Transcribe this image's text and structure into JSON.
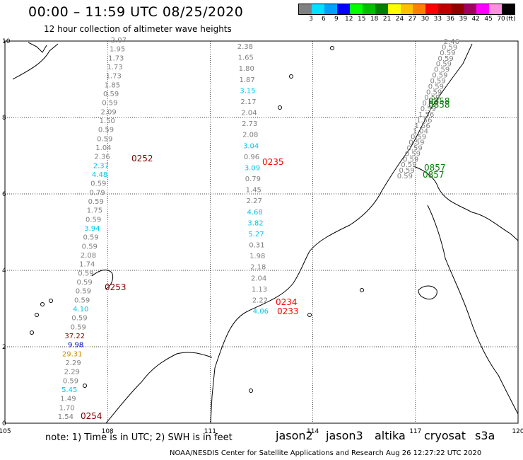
{
  "header": {
    "title": "00:00 – 11:59 UTC 08/25/2020",
    "subtitle": "12 hour collection of altimeter wave heights"
  },
  "legend": {
    "colors": [
      "#808080",
      "#00e0ff",
      "#00a0ff",
      "#0000ff",
      "#00ff00",
      "#00c000",
      "#008000",
      "#ffff00",
      "#ffc000",
      "#ff8000",
      "#ff0000",
      "#c00000",
      "#900000",
      "#a00060",
      "#ff00ff",
      "#ff90e0",
      "#000000"
    ],
    "labels": [
      "3",
      "6",
      "9",
      "12",
      "15",
      "18",
      "21",
      "24",
      "27",
      "30",
      "33",
      "36",
      "39",
      "42",
      "45",
      "70"
    ],
    "unit": "(ft)"
  },
  "map": {
    "lon_min": 105,
    "lon_max": 120,
    "lat_min": 0,
    "lat_max": 10,
    "lon_labels": [
      "105",
      "108",
      "111",
      "114",
      "117",
      "120"
    ],
    "lat_labels": [
      "0",
      "2",
      "4",
      "6",
      "8",
      "10"
    ]
  },
  "passes": [
    {
      "time": "0252",
      "color": "#800000"
    },
    {
      "time": "0253",
      "color": "#800000"
    },
    {
      "time": "0254",
      "color": "#800000"
    },
    {
      "time": "0235",
      "color": "#ff0000"
    },
    {
      "time": "0234",
      "color": "#ff0000"
    },
    {
      "time": "0233",
      "color": "#ff0000"
    },
    {
      "time": "0858",
      "color": "#008000"
    },
    {
      "time": "0858",
      "color": "#008000"
    },
    {
      "time": "0857",
      "color": "#008000"
    },
    {
      "time": "0857",
      "color": "#008000"
    }
  ],
  "track1": [
    {
      "v": "2.07",
      "c": "#808080"
    },
    {
      "v": "1.95",
      "c": "#808080"
    },
    {
      "v": "1.73",
      "c": "#808080"
    },
    {
      "v": "1.73",
      "c": "#808080"
    },
    {
      "v": "1.73",
      "c": "#808080"
    },
    {
      "v": "1.85",
      "c": "#808080"
    },
    {
      "v": "0.59",
      "c": "#808080"
    },
    {
      "v": "0.59",
      "c": "#808080"
    },
    {
      "v": "2.09",
      "c": "#808080"
    },
    {
      "v": "1.50",
      "c": "#808080"
    },
    {
      "v": "0.59",
      "c": "#808080"
    },
    {
      "v": "0.59",
      "c": "#808080"
    },
    {
      "v": "1.04",
      "c": "#808080"
    },
    {
      "v": "2.36",
      "c": "#808080"
    },
    {
      "v": "2.37",
      "c": "#00c8e8"
    },
    {
      "v": "4.48",
      "c": "#00c8e8"
    },
    {
      "v": "0.59",
      "c": "#808080"
    },
    {
      "v": "0.79",
      "c": "#808080"
    },
    {
      "v": "0.59",
      "c": "#808080"
    },
    {
      "v": "1.75",
      "c": "#808080"
    },
    {
      "v": "0.59",
      "c": "#808080"
    },
    {
      "v": "3.94",
      "c": "#00c8e8"
    },
    {
      "v": "0.59",
      "c": "#808080"
    },
    {
      "v": "0.59",
      "c": "#808080"
    },
    {
      "v": "2.08",
      "c": "#808080"
    },
    {
      "v": "1.74",
      "c": "#808080"
    },
    {
      "v": "0.59",
      "c": "#808080"
    },
    {
      "v": "0.59",
      "c": "#808080"
    },
    {
      "v": "0.59",
      "c": "#808080"
    },
    {
      "v": "0.59",
      "c": "#808080"
    },
    {
      "v": "4.10",
      "c": "#00c8e8"
    },
    {
      "v": "0.59",
      "c": "#808080"
    },
    {
      "v": "0.59",
      "c": "#808080"
    },
    {
      "v": "37.22",
      "c": "#800000"
    },
    {
      "v": "9.98",
      "c": "#0000c0"
    },
    {
      "v": "29.31",
      "c": "#d09000"
    },
    {
      "v": "2.29",
      "c": "#808080"
    },
    {
      "v": "2.29",
      "c": "#808080"
    },
    {
      "v": "0.59",
      "c": "#808080"
    },
    {
      "v": "5.45",
      "c": "#00c8e8"
    },
    {
      "v": "1.49",
      "c": "#808080"
    },
    {
      "v": "1.70",
      "c": "#808080"
    },
    {
      "v": "1.54",
      "c": "#808080"
    }
  ],
  "track2": [
    {
      "v": "2.38",
      "c": "#808080"
    },
    {
      "v": "1.65",
      "c": "#808080"
    },
    {
      "v": "1.80",
      "c": "#808080"
    },
    {
      "v": "1.87",
      "c": "#808080"
    },
    {
      "v": "3.15",
      "c": "#00c8e8"
    },
    {
      "v": "2.17",
      "c": "#808080"
    },
    {
      "v": "2.04",
      "c": "#808080"
    },
    {
      "v": "2.73",
      "c": "#808080"
    },
    {
      "v": "2.08",
      "c": "#808080"
    },
    {
      "v": "3.04",
      "c": "#00c8e8"
    },
    {
      "v": "0.96",
      "c": "#808080"
    },
    {
      "v": "3.09",
      "c": "#00c8e8"
    },
    {
      "v": "0.79",
      "c": "#808080"
    },
    {
      "v": "1.45",
      "c": "#808080"
    },
    {
      "v": "2.27",
      "c": "#808080"
    },
    {
      "v": "4.68",
      "c": "#00c8e8"
    },
    {
      "v": "3.82",
      "c": "#00c8e8"
    },
    {
      "v": "5.27",
      "c": "#00c8e8"
    },
    {
      "v": "0.31",
      "c": "#808080"
    },
    {
      "v": "1.98",
      "c": "#808080"
    },
    {
      "v": "2.18",
      "c": "#808080"
    },
    {
      "v": "2.04",
      "c": "#808080"
    },
    {
      "v": "1.13",
      "c": "#808080"
    },
    {
      "v": "2.22",
      "c": "#808080"
    },
    {
      "v": "4.06",
      "c": "#00c8e8"
    }
  ],
  "track3": [
    {
      "v": "2.46",
      "c": "#808080"
    },
    {
      "v": "0.59",
      "c": "#808080"
    },
    {
      "v": "0.59",
      "c": "#808080"
    },
    {
      "v": "0.59",
      "c": "#808080"
    },
    {
      "v": "0.59",
      "c": "#808080"
    },
    {
      "v": "0.59",
      "c": "#808080"
    },
    {
      "v": "0.59",
      "c": "#808080"
    },
    {
      "v": "0.59",
      "c": "#808080"
    },
    {
      "v": "0.59",
      "c": "#808080"
    },
    {
      "v": "0.59",
      "c": "#808080"
    },
    {
      "v": "0.59",
      "c": "#808080"
    },
    {
      "v": "0.59",
      "c": "#808080"
    },
    {
      "v": "0.59",
      "c": "#808080"
    },
    {
      "v": "1.56",
      "c": "#808080"
    },
    {
      "v": "1.56",
      "c": "#808080"
    },
    {
      "v": "1.56",
      "c": "#808080"
    },
    {
      "v": "1.04",
      "c": "#808080"
    },
    {
      "v": "0.59",
      "c": "#808080"
    },
    {
      "v": "0.59",
      "c": "#808080"
    },
    {
      "v": "0.59",
      "c": "#808080"
    },
    {
      "v": "0.59",
      "c": "#808080"
    },
    {
      "v": "0.59",
      "c": "#808080"
    },
    {
      "v": "0.59",
      "c": "#808080"
    },
    {
      "v": "0.59",
      "c": "#808080"
    },
    {
      "v": "0.59",
      "c": "#808080"
    }
  ],
  "footer": {
    "note": "note:  1) Time is in UTC;  2) SWH is in feet",
    "credit": "NOAA/NESDIS Center for Satellite Applications and Research     Aug 26 12:27:22 UTC 2020",
    "satellites": [
      {
        "name": "jason2",
        "color": "#0000e0"
      },
      {
        "name": "jason3",
        "color": "#008000"
      },
      {
        "name": "altika",
        "color": "#ff9000"
      },
      {
        "name": "cryosat",
        "color": "#ff0000"
      },
      {
        "name": "s3a",
        "color": "#800000"
      }
    ]
  }
}
